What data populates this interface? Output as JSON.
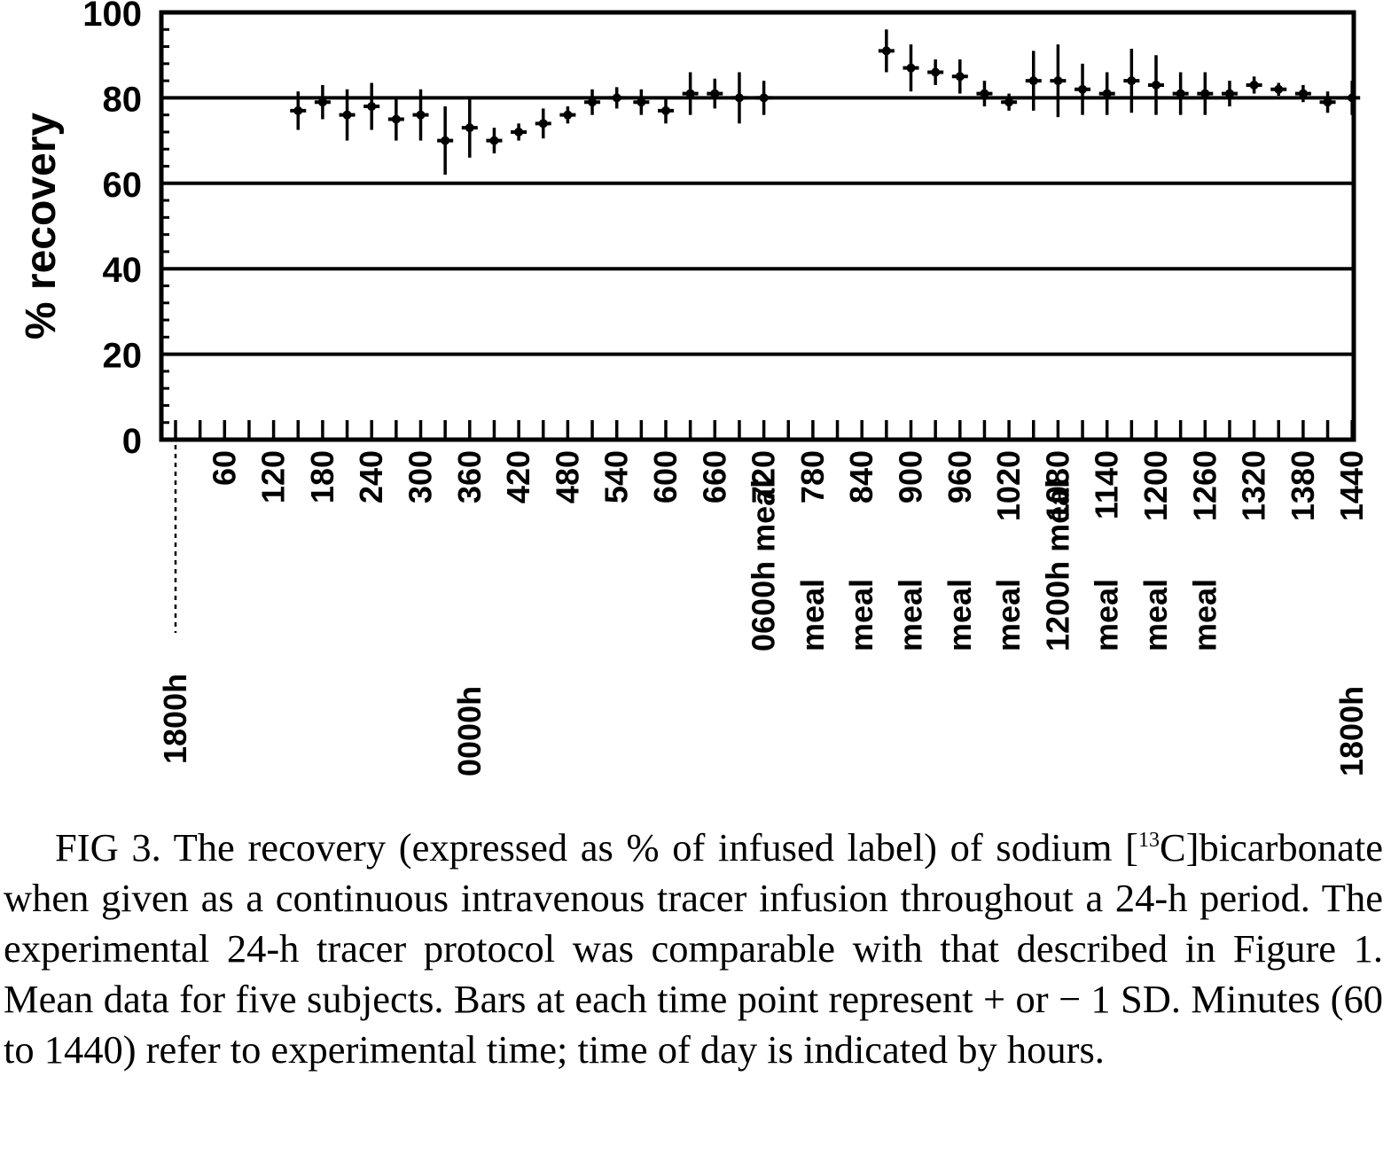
{
  "chart_data": {
    "type": "scatter",
    "ylabel": "% recovery",
    "xlabel": "",
    "ylim": [
      0,
      100
    ],
    "xlim": [
      0,
      1440
    ],
    "yticks": [
      "0",
      "20",
      "40",
      "60",
      "80",
      "100"
    ],
    "xticks": [
      "60",
      "120",
      "180",
      "240",
      "300",
      "360",
      "420",
      "480",
      "540",
      "600",
      "660",
      "720",
      "780",
      "840",
      "900",
      "960",
      "1020",
      "1080",
      "1140",
      "1200",
      "1260",
      "1320",
      "1380",
      "1440"
    ],
    "grid": "horizontal",
    "error_bars": "± 1 SD",
    "series": [
      {
        "x": [
          150,
          180,
          210,
          240,
          270,
          300,
          330,
          360,
          390,
          420,
          450,
          480,
          510,
          540,
          570,
          600,
          630,
          660,
          690,
          720,
          870,
          900,
          930,
          960,
          990,
          1020,
          1050,
          1080,
          1110,
          1140,
          1170,
          1200,
          1230,
          1260,
          1290,
          1320,
          1350,
          1380,
          1410,
          1440
        ],
        "y": [
          77,
          79,
          76,
          78,
          75,
          76,
          70,
          73,
          70,
          72,
          74,
          76,
          79,
          80,
          79,
          77,
          81,
          81,
          80,
          80,
          91,
          87,
          86,
          85,
          81,
          79,
          84,
          84,
          82,
          81,
          84,
          83,
          81,
          81,
          81,
          83,
          82,
          81,
          79,
          80
        ],
        "error": [
          4.5,
          4,
          6,
          5.5,
          5,
          6,
          8,
          7,
          3,
          2,
          3.5,
          2,
          3,
          2.5,
          3,
          3,
          5,
          3.5,
          6,
          4,
          5,
          5.5,
          3,
          4,
          3,
          2,
          7,
          8.5,
          6,
          5,
          7.5,
          7,
          5,
          5,
          3,
          2,
          1.5,
          2,
          2.5,
          4
        ]
      }
    ],
    "annotations": {
      "meal_labels": [
        {
          "x": 720,
          "text": "0600h meal"
        },
        {
          "x": 780,
          "text": "meal"
        },
        {
          "x": 840,
          "text": "meal"
        },
        {
          "x": 900,
          "text": "meal"
        },
        {
          "x": 960,
          "text": "meal"
        },
        {
          "x": 1020,
          "text": "meal"
        },
        {
          "x": 1080,
          "text": "1200h meal"
        },
        {
          "x": 1140,
          "text": "meal"
        },
        {
          "x": 1200,
          "text": "meal"
        },
        {
          "x": 1260,
          "text": "meal"
        }
      ],
      "hour_labels": [
        {
          "x": 0,
          "text": "1800h"
        },
        {
          "x": 360,
          "text": "0000h"
        },
        {
          "x": 1440,
          "text": "1800h"
        }
      ]
    }
  },
  "caption": {
    "lead": "FIG 3. The recovery (expressed as % of infused label) of sodium [",
    "sup": "13",
    "rest": "C]bicarbonate when given as a continuous intravenous tracer infusion throughout a 24-h period. The experimental 24-h tracer protocol was comparable with that described in Figure 1. Mean data for five subjects. Bars at each time point represent + or − 1 SD. Minutes (60 to 1440) refer to experimental time; time of day is indicated by hours."
  }
}
